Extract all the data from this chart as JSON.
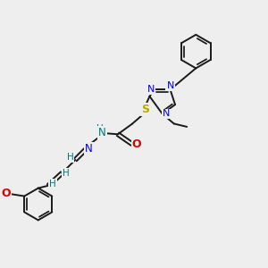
{
  "bg_color": "#eeeeee",
  "bond_color": "#1a1a1a",
  "bond_width": 1.4,
  "N_color": "#0000ee",
  "O_color": "#dd0000",
  "S_color": "#bbaa00",
  "teal_color": "#007777",
  "figsize": [
    3.0,
    3.0
  ],
  "dpi": 100,
  "xlim": [
    0,
    10
  ],
  "ylim": [
    0,
    10
  ]
}
